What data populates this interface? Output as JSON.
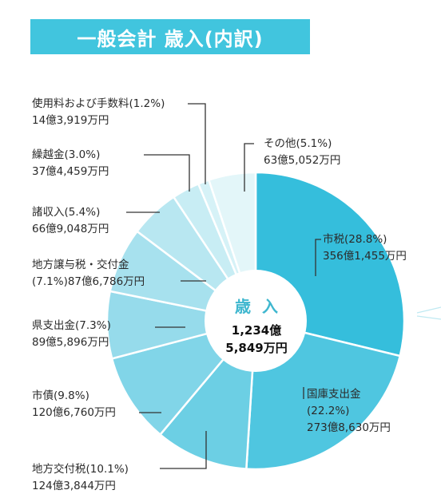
{
  "header": {
    "title": "一般会計 歳入(内訳)"
  },
  "center": {
    "title": "歳入",
    "total_line1": "1,234億",
    "total_line2": "5,849万円"
  },
  "colors": {
    "banner": "#41c5de",
    "leader": "#333333"
  },
  "chart_data": {
    "type": "pie",
    "title": "一般会計 歳入(内訳)",
    "total": "1,234億5,849万円",
    "slices": [
      {
        "name": "市税",
        "percent": 28.8,
        "amount": "356億1,455万円",
        "color": "#35bedc"
      },
      {
        "name": "国庫支出金",
        "percent": 22.2,
        "amount": "273億8,630万円",
        "color": "#4fc6e0"
      },
      {
        "name": "地方交付税",
        "percent": 10.1,
        "amount": "124億3,844万円",
        "color": "#6ccfe4"
      },
      {
        "name": "市債",
        "percent": 9.8,
        "amount": "120億6,760万円",
        "color": "#81d5e8"
      },
      {
        "name": "県支出金",
        "percent": 7.3,
        "amount": "89億5,896万円",
        "color": "#96dbeb"
      },
      {
        "name": "地方譲与税・交付金",
        "percent": 7.1,
        "amount": "87億6,786万円",
        "color": "#a7e1ee"
      },
      {
        "name": "諸収入",
        "percent": 5.4,
        "amount": "66億9,048万円",
        "color": "#b8e7f1"
      },
      {
        "name": "繰越金",
        "percent": 3.0,
        "amount": "37億4,459万円",
        "color": "#c8edf4"
      },
      {
        "name": "使用料および手数料",
        "percent": 1.2,
        "amount": "14億3,919万円",
        "color": "#d6f2f7"
      },
      {
        "name": "その他",
        "percent": 5.1,
        "amount": "63億5,052万円",
        "color": "#e3f6f9"
      }
    ]
  },
  "labels": [
    {
      "line1": "使用料および手数料(1.2%)",
      "line2": "14億3,919万円"
    },
    {
      "line1": "繰越金(3.0%)",
      "line2": "37億4,459万円"
    },
    {
      "line1": "諸収入(5.4%)",
      "line2": "66億9,048万円"
    },
    {
      "line1": "地方譲与税・交付金",
      "line2": "(7.1%)87億6,786万円"
    },
    {
      "line1": "県支出金(7.3%)",
      "line2": "89億5,896万円"
    },
    {
      "line1": "市債(9.8%)",
      "line2": "120億6,760万円"
    },
    {
      "line1": "地方交付税(10.1%)",
      "line2": "124億3,844万円"
    },
    {
      "line1": "その他(5.1%)",
      "line2": "63億5,052万円"
    },
    {
      "line1": "市税(28.8%)",
      "line2": "356億1,455万円"
    },
    {
      "line1": "国庫支出金",
      "line2": "(22.2%)",
      "line3": "273億8,630万円"
    }
  ]
}
